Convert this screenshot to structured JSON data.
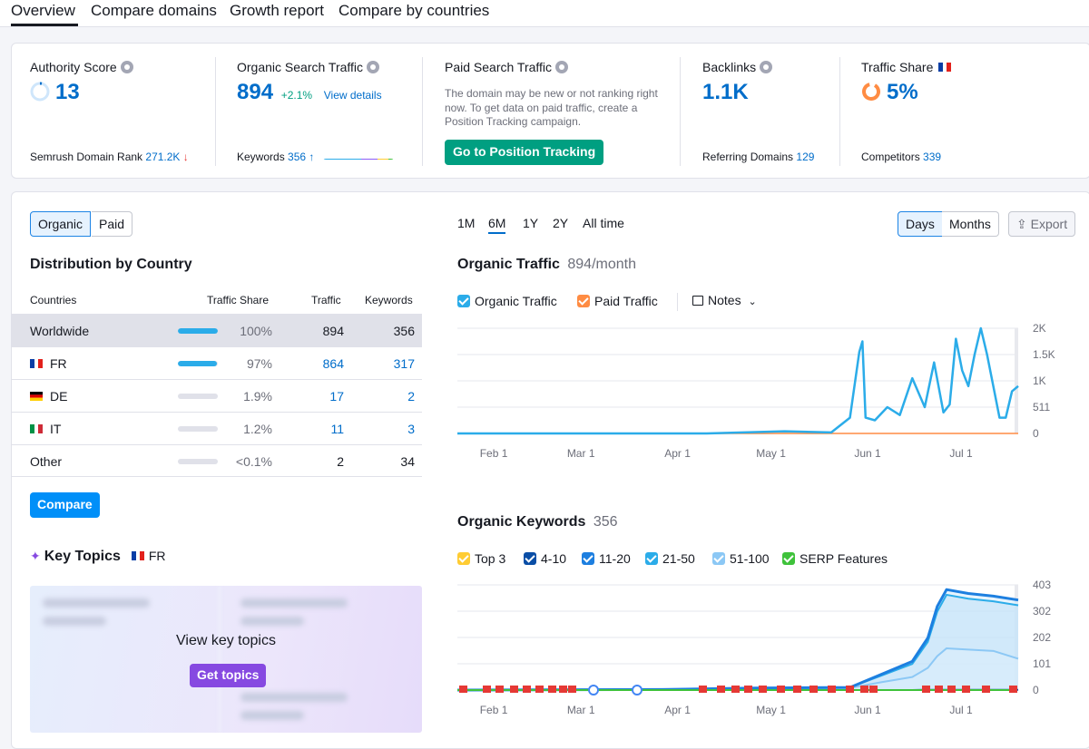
{
  "tabs": [
    "Overview",
    "Compare domains",
    "Growth report",
    "Compare by countries"
  ],
  "metrics": {
    "authority": {
      "title": "Authority Score",
      "value": "13",
      "foot_label": "Semrush Domain Rank",
      "foot_value": "271.2K",
      "foot_arrow": "↓"
    },
    "organic": {
      "title": "Organic Search Traffic",
      "value": "894",
      "change": "+2.1%",
      "link": "View details",
      "foot_label": "Keywords",
      "foot_value": "356",
      "foot_arrow": "↑"
    },
    "paid": {
      "title": "Paid Search Traffic",
      "description": "The domain may be new or not ranking right now. To get data on paid traffic, create a Position Tracking campaign.",
      "button": "Go to Position Tracking"
    },
    "backlinks": {
      "title": "Backlinks",
      "value": "1.1K",
      "foot_label": "Referring Domains",
      "foot_value": "129"
    },
    "share": {
      "title": "Traffic Share",
      "value": "5%",
      "foot_label": "Competitors",
      "foot_value": "339"
    }
  },
  "left": {
    "toggle": [
      "Organic",
      "Paid"
    ],
    "dist_title": "Distribution by Country",
    "headers": {
      "country": "Countries",
      "share": "Traffic Share",
      "traffic": "Traffic",
      "keywords": "Keywords"
    },
    "rows": [
      {
        "country": "Worldwide",
        "share": "100%",
        "share_level": 1.0,
        "traffic": "894",
        "keywords": "356"
      },
      {
        "country": "FR",
        "share": "97%",
        "share_level": 0.97,
        "traffic": "864",
        "keywords": "317"
      },
      {
        "country": "DE",
        "share": "1.9%",
        "share_level": 0.019,
        "traffic": "17",
        "keywords": "2"
      },
      {
        "country": "IT",
        "share": "1.2%",
        "share_level": 0.012,
        "traffic": "11",
        "keywords": "3"
      },
      {
        "country": "Other",
        "share": "<0.1%",
        "share_level": 0.001,
        "traffic": "2",
        "keywords": "34"
      }
    ],
    "compare_button": "Compare",
    "key_topics_title": "Key Topics",
    "key_topics_country": "FR",
    "key_topics_text": "View key topics",
    "get_topics_button": "Get topics"
  },
  "right": {
    "periods": [
      "1M",
      "6M",
      "1Y",
      "2Y",
      "All time"
    ],
    "active_period": "6M",
    "granularity": [
      "Days",
      "Months"
    ],
    "export": "Export",
    "traffic_title": "Organic Traffic",
    "traffic_sub": "894/month",
    "traffic_legend": {
      "organic": "Organic Traffic",
      "paid": "Paid Traffic",
      "notes": "Notes"
    },
    "keywords_title": "Organic Keywords",
    "keywords_sub": "356",
    "keywords_legend": [
      "Top 3",
      "4-10",
      "11-20",
      "21-50",
      "51-100",
      "SERP Features"
    ]
  },
  "colors": {
    "accent": "#006dca",
    "green": "#009f81",
    "purple": "#8649e1",
    "organic_line": "#2bace9",
    "paid_line": "#ff8c43"
  },
  "chart_data": [
    {
      "type": "line",
      "title": "Organic Traffic",
      "x_ticks": [
        "Feb 1",
        "Mar 1",
        "Apr 1",
        "May 1",
        "Jun 1",
        "Jul 1"
      ],
      "y_ticks": [
        "0",
        "511",
        "1K",
        "1.5K",
        "2K"
      ],
      "ylim": [
        0,
        2000
      ],
      "x": [
        "Jan 25",
        "Feb 15",
        "Mar 15",
        "Apr 15",
        "May 10",
        "May 25",
        "May 31",
        "Jun 3",
        "Jun 4",
        "Jun 5",
        "Jun 8",
        "Jun 12",
        "Jun 16",
        "Jun 20",
        "Jun 24",
        "Jun 27",
        "Jun 30",
        "Jul 2",
        "Jul 4",
        "Jul 6",
        "Jul 8",
        "Jul 10",
        "Jul 12",
        "Jul 14",
        "Jul 16",
        "Jul 18",
        "Jul 20",
        "Jul 22",
        "Jul 24"
      ],
      "series": [
        {
          "name": "Organic Traffic",
          "values": [
            0,
            0,
            0,
            0,
            40,
            20,
            300,
            1550,
            1750,
            300,
            250,
            500,
            350,
            1050,
            500,
            1350,
            400,
            550,
            1800,
            1200,
            900,
            1500,
            2000,
            1500,
            900,
            300,
            300,
            800,
            900
          ]
        },
        {
          "name": "Paid Traffic",
          "values": [
            0,
            0,
            0,
            0,
            0,
            0,
            0,
            0,
            0,
            0,
            0,
            0,
            0,
            0,
            0,
            0,
            0,
            0,
            0,
            0,
            0,
            0,
            0,
            0,
            0,
            0,
            0,
            0,
            0
          ]
        }
      ]
    },
    {
      "type": "area",
      "title": "Organic Keywords",
      "x_ticks": [
        "Feb 1",
        "Mar 1",
        "Apr 1",
        "May 1",
        "Jun 1",
        "Jul 1"
      ],
      "y_ticks": [
        "0",
        "101",
        "202",
        "302",
        "403"
      ],
      "ylim": [
        0,
        403
      ],
      "x": [
        "Jan 25",
        "Apr 1",
        "May 1",
        "May 31",
        "Jun 10",
        "Jun 20",
        "Jun 25",
        "Jun 28",
        "Jul 1",
        "Jul 8",
        "Jul 16",
        "Jul 24"
      ],
      "series": [
        {
          "name": "Top 3",
          "values": [
            0,
            0,
            0,
            0,
            0,
            0,
            0,
            0,
            0,
            0,
            0,
            0
          ]
        },
        {
          "name": "4-10",
          "values": [
            0,
            0,
            0,
            0,
            0,
            0,
            1,
            1,
            1,
            1,
            1,
            1
          ]
        },
        {
          "name": "11-20",
          "values": [
            0,
            2,
            8,
            10,
            60,
            110,
            200,
            320,
            385,
            370,
            360,
            345
          ]
        },
        {
          "name": "21-50",
          "values": [
            0,
            2,
            8,
            10,
            55,
            100,
            185,
            300,
            365,
            350,
            340,
            325
          ]
        },
        {
          "name": "51-100",
          "values": [
            0,
            1,
            5,
            8,
            30,
            50,
            85,
            130,
            160,
            155,
            150,
            120
          ]
        }
      ]
    }
  ]
}
